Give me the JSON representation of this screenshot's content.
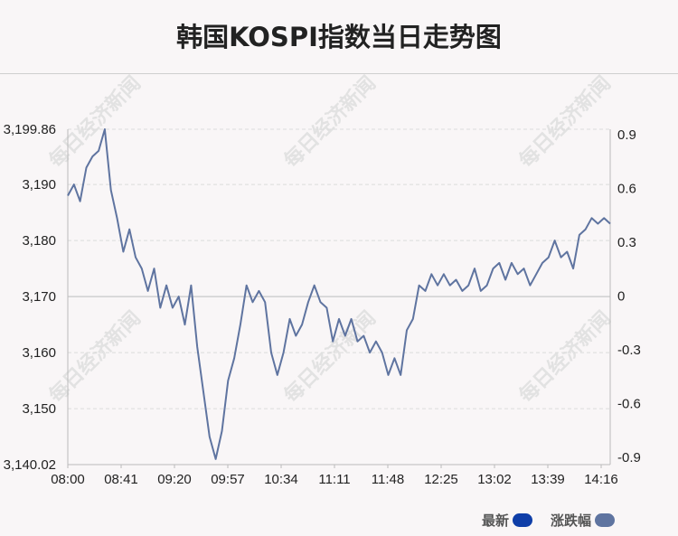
{
  "title": "韩国KOSPI指数当日走势图",
  "legend": {
    "latest_label": "最新",
    "change_label": "涨跌幅",
    "latest_color": "#0f3ea8",
    "change_color": "#5f74a0"
  },
  "watermark": "每日经济新闻",
  "chart_data": {
    "type": "line",
    "x_ticks": [
      "08:00",
      "08:41",
      "09:20",
      "09:57",
      "10:34",
      "11:11",
      "11:48",
      "12:25",
      "13:02",
      "13:39",
      "14:16"
    ],
    "y_left_ticks": [
      "3,140.02",
      "3,150",
      "3,160",
      "3,170",
      "3,180",
      "3,190",
      "3,199.86"
    ],
    "y_left_values": [
      3140.02,
      3150,
      3160,
      3170,
      3180,
      3190,
      3199.86
    ],
    "y_right_ticks": [
      "-0.9",
      "-0.6",
      "-0.3",
      "0",
      "0.3",
      "0.6",
      "0.9"
    ],
    "y_right_values": [
      -0.9,
      -0.6,
      -0.3,
      0,
      0.3,
      0.6,
      0.9
    ],
    "ylim": [
      3140.02,
      3199.86
    ],
    "baseline": 3170,
    "series": [
      {
        "color": "#5f74a0",
        "points": [
          [
            0,
            3188
          ],
          [
            1,
            3190
          ],
          [
            2,
            3187
          ],
          [
            3,
            3193
          ],
          [
            4,
            3195
          ],
          [
            5,
            3196
          ],
          [
            6,
            3199.86
          ],
          [
            7,
            3189
          ],
          [
            8,
            3184
          ],
          [
            9,
            3178
          ],
          [
            10,
            3182
          ],
          [
            11,
            3177
          ],
          [
            12,
            3175
          ],
          [
            13,
            3171
          ],
          [
            14,
            3175
          ],
          [
            15,
            3168
          ],
          [
            16,
            3172
          ],
          [
            17,
            3168
          ],
          [
            18,
            3170
          ],
          [
            19,
            3165
          ],
          [
            20,
            3172
          ],
          [
            21,
            3161
          ],
          [
            22,
            3153
          ],
          [
            23,
            3145
          ],
          [
            24,
            3141
          ],
          [
            25,
            3146
          ],
          [
            26,
            3155
          ],
          [
            27,
            3159
          ],
          [
            28,
            3165
          ],
          [
            29,
            3172
          ],
          [
            30,
            3169
          ],
          [
            31,
            3171
          ],
          [
            32,
            3169
          ],
          [
            33,
            3160
          ],
          [
            34,
            3156
          ],
          [
            35,
            3160
          ],
          [
            36,
            3166
          ],
          [
            37,
            3163
          ],
          [
            38,
            3165
          ],
          [
            39,
            3169
          ],
          [
            40,
            3172
          ],
          [
            41,
            3169
          ],
          [
            42,
            3168
          ],
          [
            43,
            3162
          ],
          [
            44,
            3166
          ],
          [
            45,
            3163
          ],
          [
            46,
            3166
          ],
          [
            47,
            3162
          ],
          [
            48,
            3163
          ],
          [
            49,
            3160
          ],
          [
            50,
            3162
          ],
          [
            51,
            3160
          ],
          [
            52,
            3156
          ],
          [
            53,
            3159
          ],
          [
            54,
            3156
          ],
          [
            55,
            3164
          ],
          [
            56,
            3166
          ],
          [
            57,
            3172
          ],
          [
            58,
            3171
          ],
          [
            59,
            3174
          ],
          [
            60,
            3172
          ],
          [
            61,
            3174
          ],
          [
            62,
            3172
          ],
          [
            63,
            3173
          ],
          [
            64,
            3171
          ],
          [
            65,
            3172
          ],
          [
            66,
            3175
          ],
          [
            67,
            3171
          ],
          [
            68,
            3172
          ],
          [
            69,
            3175
          ],
          [
            70,
            3176
          ],
          [
            71,
            3173
          ],
          [
            72,
            3176
          ],
          [
            73,
            3174
          ],
          [
            74,
            3175
          ],
          [
            75,
            3172
          ],
          [
            76,
            3174
          ],
          [
            77,
            3176
          ],
          [
            78,
            3177
          ],
          [
            79,
            3180
          ],
          [
            80,
            3177
          ],
          [
            81,
            3178
          ],
          [
            82,
            3175
          ],
          [
            83,
            3181
          ],
          [
            84,
            3182
          ],
          [
            85,
            3184
          ],
          [
            86,
            3183
          ],
          [
            87,
            3184
          ],
          [
            88,
            3183
          ]
        ]
      }
    ],
    "x_count": 88
  }
}
